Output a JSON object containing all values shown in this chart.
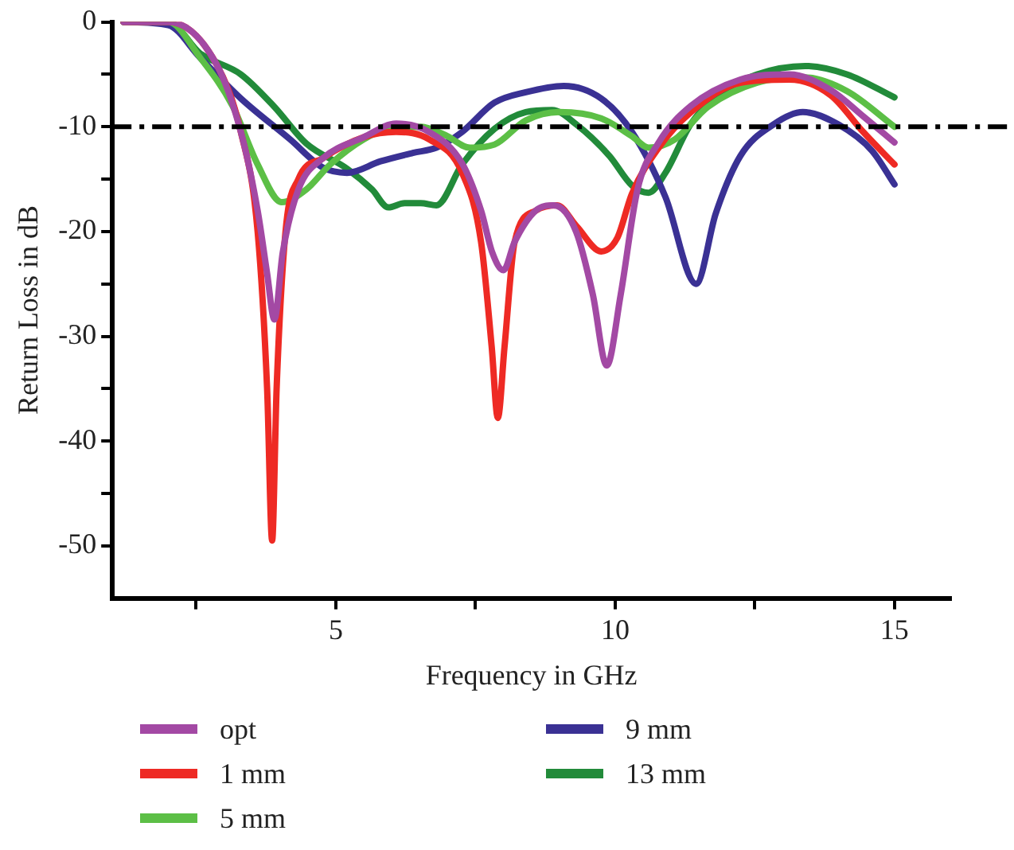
{
  "chart_data": {
    "type": "line",
    "xlabel": "Frequency in GHz",
    "ylabel": "Return Loss in dB",
    "xlim": [
      1,
      16
    ],
    "ylim": [
      -55,
      0
    ],
    "xticks": [
      {
        "value": 2.5,
        "label": null
      },
      5,
      {
        "value": 7.5,
        "label": null
      },
      10,
      {
        "value": 12.5,
        "label": null
      },
      15
    ],
    "yticks": [
      0,
      {
        "value": -5,
        "label": null
      },
      -10,
      {
        "value": -15,
        "label": null
      },
      -20,
      {
        "value": -25,
        "label": null
      },
      -30,
      {
        "value": -35,
        "label": null
      },
      -40,
      {
        "value": -45,
        "label": null
      },
      -50
    ],
    "grid": false,
    "legend": "bottom",
    "marker": "none",
    "line_style": "solid",
    "ref_lines": [
      {
        "axis": "y",
        "value": -10,
        "color": "#000000",
        "line_style": "dashed"
      }
    ],
    "series": [
      {
        "name": "opt",
        "color": "#a349a4",
        "x": [
          1.2,
          2,
          2.86,
          3.3,
          3.6,
          3.77,
          3.9,
          4.05,
          4.33,
          4.77,
          5.5,
          6.08,
          6.67,
          7.26,
          7.6,
          7.8,
          8.0,
          8.2,
          8.58,
          8.9,
          9.3,
          9.6,
          9.85,
          10.1,
          10.4,
          10.78,
          11.36,
          12.24,
          13.12,
          13.86,
          14.44,
          15
        ],
        "values": [
          0,
          0,
          -4,
          -10.5,
          -18,
          -24,
          -28.4,
          -22,
          -16,
          -13,
          -11,
          -9.7,
          -10.5,
          -13.5,
          -18,
          -22,
          -23.7,
          -21,
          -18,
          -17.5,
          -20,
          -26,
          -32.8,
          -26,
          -16,
          -11.5,
          -8,
          -5.5,
          -5,
          -6.5,
          -9,
          -11.5
        ]
      },
      {
        "name": "1 mm",
        "color": "#ee2a24",
        "x": [
          1.2,
          2,
          2.86,
          3.3,
          3.6,
          3.77,
          3.86,
          3.94,
          4.1,
          4.33,
          4.77,
          5.5,
          6.08,
          6.67,
          7.26,
          7.6,
          7.79,
          7.9,
          8.02,
          8.2,
          8.58,
          8.96,
          9.31,
          9.75,
          10.04,
          10.3,
          10.78,
          11.36,
          12.24,
          13.12,
          13.86,
          14.44,
          15
        ],
        "values": [
          0,
          0,
          -4,
          -10.5,
          -20,
          -35,
          -49.5,
          -35,
          -20,
          -15,
          -13,
          -11,
          -10.5,
          -11.2,
          -14.4,
          -21,
          -31,
          -37.8,
          -31,
          -21,
          -18,
          -17.5,
          -19.5,
          -21.9,
          -20.6,
          -16.4,
          -12,
          -8.6,
          -5.8,
          -5.5,
          -7,
          -10.5,
          -13.6
        ]
      },
      {
        "name": "5 mm",
        "color": "#5cbf46",
        "x": [
          1.2,
          2,
          2.57,
          3.15,
          3.6,
          4.03,
          4.47,
          4.9,
          5.5,
          5.94,
          6.52,
          6.96,
          7.4,
          7.84,
          8.4,
          9,
          9.75,
          10.3,
          10.6,
          11.07,
          11.66,
          12.54,
          13.4,
          14.15,
          15
        ],
        "values": [
          0,
          0,
          -3.4,
          -8,
          -13.6,
          -17.2,
          -16,
          -13.6,
          -11.2,
          -10.2,
          -10,
          -10.8,
          -12,
          -11.7,
          -9.4,
          -8.6,
          -9.2,
          -10.9,
          -12,
          -11.2,
          -8.1,
          -5.8,
          -5.3,
          -6.6,
          -10
        ]
      },
      {
        "name": "9 mm",
        "color": "#3a3194",
        "x": [
          1.2,
          2,
          2.57,
          3.3,
          4.18,
          4.77,
          5.2,
          5.8,
          6.38,
          6.8,
          7.26,
          7.84,
          8.4,
          9.08,
          9.75,
          10.3,
          10.9,
          11.45,
          11.8,
          12.24,
          12.83,
          13.36,
          14,
          14.6,
          15
        ],
        "values": [
          0,
          -0.3,
          -3.4,
          -7.3,
          -11.2,
          -13.9,
          -14.4,
          -13.3,
          -12.5,
          -12,
          -10.5,
          -7.7,
          -6.7,
          -6.1,
          -7.3,
          -10.5,
          -16.7,
          -25,
          -18.3,
          -12.8,
          -9.8,
          -8.6,
          -9.8,
          -12.3,
          -15.5
        ]
      },
      {
        "name": "13 mm",
        "color": "#228b3a",
        "x": [
          1.2,
          2,
          2.57,
          3.3,
          3.9,
          4.47,
          5.2,
          5.65,
          5.94,
          6.23,
          6.52,
          6.8,
          7.26,
          7.84,
          8.4,
          8.87,
          9.31,
          9.9,
          10.3,
          10.6,
          10.9,
          11.36,
          11.95,
          12.54,
          13.4,
          14.15,
          15
        ],
        "values": [
          0,
          0,
          -3,
          -5,
          -8.1,
          -11.6,
          -14,
          -16,
          -17.7,
          -17.3,
          -17.3,
          -17.5,
          -13.6,
          -10.2,
          -8.6,
          -8.4,
          -9.8,
          -12.8,
          -15.6,
          -16.3,
          -14.4,
          -9.7,
          -6.6,
          -5,
          -4.2,
          -5,
          -7.2
        ]
      }
    ]
  }
}
